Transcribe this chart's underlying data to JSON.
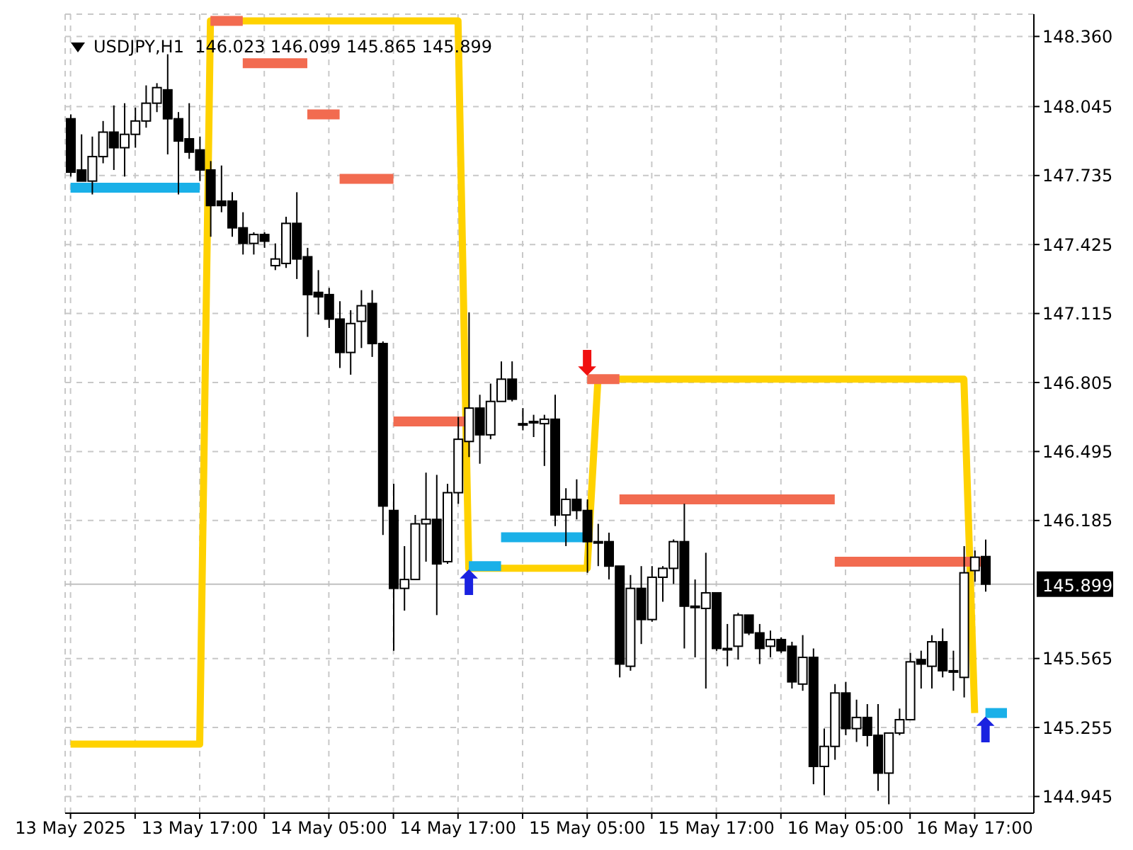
{
  "chart_data": {
    "type": "candlestick",
    "title": "USDJPY,H1  146.023 146.099 145.865 145.899",
    "x": [
      "2025-05-13T05:00",
      "2025-05-13T06:00",
      "2025-05-13T07:00",
      "2025-05-13T08:00",
      "2025-05-13T09:00",
      "2025-05-13T10:00",
      "2025-05-13T11:00",
      "2025-05-13T12:00",
      "2025-05-13T13:00",
      "2025-05-13T14:00",
      "2025-05-13T15:00",
      "2025-05-13T16:00",
      "2025-05-13T17:00",
      "2025-05-13T18:00",
      "2025-05-13T19:00",
      "2025-05-13T20:00",
      "2025-05-13T21:00",
      "2025-05-13T22:00",
      "2025-05-13T23:00",
      "2025-05-14T00:00",
      "2025-05-14T01:00",
      "2025-05-14T02:00",
      "2025-05-14T03:00",
      "2025-05-14T04:00",
      "2025-05-14T05:00",
      "2025-05-14T06:00",
      "2025-05-14T07:00",
      "2025-05-14T08:00",
      "2025-05-14T09:00",
      "2025-05-14T10:00",
      "2025-05-14T11:00",
      "2025-05-14T12:00",
      "2025-05-14T13:00",
      "2025-05-14T14:00",
      "2025-05-14T15:00",
      "2025-05-14T16:00",
      "2025-05-14T17:00",
      "2025-05-14T18:00",
      "2025-05-14T19:00",
      "2025-05-14T20:00",
      "2025-05-14T21:00",
      "2025-05-14T22:00",
      "2025-05-14T23:00",
      "2025-05-15T00:00",
      "2025-05-15T01:00",
      "2025-05-15T02:00",
      "2025-05-15T03:00",
      "2025-05-15T04:00",
      "2025-05-15T05:00",
      "2025-05-15T06:00",
      "2025-05-15T07:00",
      "2025-05-15T08:00",
      "2025-05-15T09:00",
      "2025-05-15T10:00",
      "2025-05-15T11:00",
      "2025-05-15T12:00",
      "2025-05-15T13:00",
      "2025-05-15T14:00",
      "2025-05-15T15:00",
      "2025-05-15T16:00",
      "2025-05-15T17:00",
      "2025-05-15T18:00",
      "2025-05-15T19:00",
      "2025-05-15T20:00",
      "2025-05-15T21:00",
      "2025-05-15T22:00",
      "2025-05-15T23:00",
      "2025-05-16T00:00",
      "2025-05-16T01:00",
      "2025-05-16T02:00",
      "2025-05-16T03:00",
      "2025-05-16T04:00",
      "2025-05-16T05:00",
      "2025-05-16T06:00",
      "2025-05-16T07:00",
      "2025-05-16T08:00",
      "2025-05-16T09:00",
      "2025-05-16T10:00",
      "2025-05-16T11:00",
      "2025-05-16T12:00",
      "2025-05-16T13:00",
      "2025-05-16T14:00",
      "2025-05-16T15:00",
      "2025-05-16T16:00",
      "2025-05-16T17:00",
      "2025-05-16T18:00"
    ],
    "ohlc": [
      [
        147.99,
        148.01,
        147.73,
        147.75
      ],
      [
        147.76,
        147.92,
        147.71,
        147.71
      ],
      [
        147.71,
        147.91,
        147.65,
        147.82
      ],
      [
        147.82,
        147.98,
        147.79,
        147.93
      ],
      [
        147.93,
        148.05,
        147.76,
        147.86
      ],
      [
        147.86,
        148.06,
        147.73,
        147.92
      ],
      [
        147.92,
        148.04,
        147.86,
        147.98
      ],
      [
        147.98,
        148.14,
        147.95,
        148.06
      ],
      [
        148.06,
        148.15,
        148.02,
        148.13
      ],
      [
        148.12,
        148.28,
        147.83,
        147.99
      ],
      [
        147.99,
        148.02,
        147.65,
        147.89
      ],
      [
        147.9,
        148.06,
        147.81,
        147.84
      ],
      [
        147.85,
        147.91,
        147.71,
        147.76
      ],
      [
        147.76,
        147.8,
        147.46,
        147.6
      ],
      [
        147.62,
        147.78,
        147.57,
        147.6
      ],
      [
        147.62,
        147.66,
        147.46,
        147.5
      ],
      [
        147.5,
        147.57,
        147.38,
        147.43
      ],
      [
        147.43,
        147.48,
        147.38,
        147.47
      ],
      [
        147.47,
        147.48,
        147.41,
        147.44
      ],
      [
        147.33,
        147.43,
        147.31,
        147.36
      ],
      [
        147.34,
        147.55,
        147.32,
        147.52
      ],
      [
        147.52,
        147.66,
        147.27,
        147.36
      ],
      [
        147.37,
        147.41,
        147.01,
        147.2
      ],
      [
        147.21,
        147.31,
        147.11,
        147.19
      ],
      [
        147.2,
        147.23,
        147.05,
        147.09
      ],
      [
        147.09,
        147.17,
        146.87,
        146.94
      ],
      [
        146.94,
        147.13,
        146.84,
        147.07
      ],
      [
        147.08,
        147.22,
        146.96,
        147.15
      ],
      [
        147.16,
        147.22,
        146.92,
        146.98
      ],
      [
        146.98,
        146.99,
        146.12,
        146.25
      ],
      [
        146.23,
        146.35,
        145.6,
        145.88
      ],
      [
        145.88,
        146.07,
        145.78,
        145.92
      ],
      [
        145.92,
        146.21,
        145.92,
        146.17
      ],
      [
        146.17,
        146.4,
        146.0,
        146.19
      ],
      [
        146.19,
        146.39,
        145.76,
        145.99
      ],
      [
        146.0,
        146.35,
        145.99,
        146.31
      ],
      [
        146.31,
        146.65,
        146.26,
        146.55
      ],
      [
        146.54,
        147.12,
        146.47,
        146.69
      ],
      [
        146.69,
        146.75,
        146.44,
        146.57
      ],
      [
        146.57,
        146.8,
        146.55,
        146.72
      ],
      [
        146.72,
        146.9,
        146.72,
        146.82
      ],
      [
        146.82,
        146.9,
        146.72,
        146.73
      ],
      [
        146.62,
        146.69,
        146.59,
        146.62
      ],
      [
        146.63,
        146.66,
        146.56,
        146.63
      ],
      [
        146.62,
        146.66,
        146.43,
        146.64
      ],
      [
        146.64,
        146.75,
        146.16,
        146.21
      ],
      [
        146.21,
        146.33,
        146.07,
        146.28
      ],
      [
        146.28,
        146.37,
        146.19,
        146.23
      ],
      [
        146.23,
        146.28,
        145.95,
        146.09
      ],
      [
        146.09,
        146.17,
        145.98,
        146.09
      ],
      [
        146.09,
        146.13,
        145.92,
        145.98
      ],
      [
        145.98,
        145.98,
        145.48,
        145.54
      ],
      [
        145.53,
        145.94,
        145.51,
        145.88
      ],
      [
        145.88,
        145.98,
        145.63,
        145.74
      ],
      [
        145.74,
        145.98,
        145.73,
        145.93
      ],
      [
        145.93,
        145.98,
        145.82,
        145.97
      ],
      [
        145.97,
        146.1,
        145.9,
        146.09
      ],
      [
        146.09,
        146.26,
        145.61,
        145.8
      ],
      [
        145.8,
        145.92,
        145.57,
        145.8
      ],
      [
        145.79,
        146.04,
        145.43,
        145.86
      ],
      [
        145.86,
        145.86,
        145.6,
        145.61
      ],
      [
        145.61,
        145.72,
        145.53,
        145.61
      ],
      [
        145.62,
        145.77,
        145.56,
        145.76
      ],
      [
        145.76,
        145.76,
        145.67,
        145.68
      ],
      [
        145.68,
        145.72,
        145.54,
        145.61
      ],
      [
        145.62,
        145.69,
        145.57,
        145.65
      ],
      [
        145.65,
        145.66,
        145.59,
        145.6
      ],
      [
        145.62,
        145.64,
        145.43,
        145.46
      ],
      [
        145.45,
        145.67,
        145.42,
        145.57
      ],
      [
        145.57,
        145.61,
        145.0,
        145.08
      ],
      [
        145.08,
        145.25,
        144.95,
        145.17
      ],
      [
        145.17,
        145.45,
        145.11,
        145.41
      ],
      [
        145.41,
        145.46,
        145.22,
        145.25
      ],
      [
        145.25,
        145.38,
        145.19,
        145.3
      ],
      [
        145.3,
        145.36,
        145.17,
        145.22
      ],
      [
        145.22,
        145.36,
        144.97,
        145.05
      ],
      [
        145.05,
        145.23,
        144.91,
        145.23
      ],
      [
        145.23,
        145.34,
        145.22,
        145.29
      ],
      [
        145.29,
        145.59,
        145.29,
        145.55
      ],
      [
        145.56,
        145.6,
        145.43,
        145.54
      ],
      [
        145.53,
        145.67,
        145.43,
        145.64
      ],
      [
        145.64,
        145.7,
        145.48,
        145.51
      ],
      [
        145.51,
        145.6,
        145.42,
        145.51
      ],
      [
        145.48,
        146.07,
        145.39,
        145.95
      ],
      [
        145.96,
        146.05,
        145.91,
        146.02
      ],
      [
        146.023,
        146.099,
        145.865,
        145.899
      ]
    ],
    "series": [
      {
        "type": "line",
        "color": "#ffd200",
        "x": [
          "2025-05-13T05:00",
          "2025-05-13T17:00",
          "2025-05-13T18:00",
          "2025-05-14T17:00",
          "2025-05-14T18:00",
          "2025-05-15T05:00",
          "2025-05-15T06:00",
          "2025-05-16T16:00",
          "2025-05-16T17:00"
        ],
        "values": [
          145.18,
          145.18,
          148.43,
          148.43,
          145.97,
          145.97,
          146.82,
          146.82,
          145.32
        ]
      },
      {
        "type": "line",
        "color": "#f26b50",
        "x": [
          "2025-05-13T18:00",
          "2025-05-13T21:00"
        ],
        "values": [
          148.43,
          148.43
        ]
      },
      {
        "type": "line",
        "color": "#f26b50",
        "x": [
          "2025-05-13T21:00",
          "2025-05-14T03:00"
        ],
        "values": [
          148.24,
          148.24
        ]
      },
      {
        "type": "line",
        "color": "#f26b50",
        "x": [
          "2025-05-14T03:00",
          "2025-05-14T06:00"
        ],
        "values": [
          148.01,
          148.01
        ]
      },
      {
        "type": "line",
        "color": "#f26b50",
        "x": [
          "2025-05-14T06:00",
          "2025-05-14T11:00"
        ],
        "values": [
          147.72,
          147.72
        ]
      },
      {
        "type": "line",
        "color": "#f26b50",
        "x": [
          "2025-05-14T11:00",
          "2025-05-14T18:00"
        ],
        "values": [
          146.63,
          146.63
        ]
      },
      {
        "type": "line",
        "color": "#f26b50",
        "x": [
          "2025-05-15T05:00",
          "2025-05-15T08:00"
        ],
        "values": [
          146.82,
          146.82
        ]
      },
      {
        "type": "line",
        "color": "#f26b50",
        "x": [
          "2025-05-15T08:00",
          "2025-05-16T04:00"
        ],
        "values": [
          146.28,
          146.28
        ]
      },
      {
        "type": "line",
        "color": "#f26b50",
        "x": [
          "2025-05-16T04:00",
          "2025-05-16T18:00"
        ],
        "values": [
          146.0,
          146.0
        ]
      },
      {
        "type": "line",
        "color": "#1ab0e8",
        "x": [
          "2025-05-13T05:00",
          "2025-05-13T17:00"
        ],
        "values": [
          147.68,
          147.68
        ]
      },
      {
        "type": "line",
        "color": "#1ab0e8",
        "x": [
          "2025-05-14T18:00",
          "2025-05-14T21:00"
        ],
        "values": [
          145.98,
          145.98
        ]
      },
      {
        "type": "line",
        "color": "#1ab0e8",
        "x": [
          "2025-05-14T21:00",
          "2025-05-15T05:00"
        ],
        "values": [
          146.11,
          146.11
        ]
      },
      {
        "type": "line",
        "color": "#1ab0e8",
        "x": [
          "2025-05-16T18:00",
          "2025-05-16T20:00"
        ],
        "values": [
          145.32,
          145.32
        ]
      }
    ],
    "annotations": [
      {
        "text": "⬆",
        "x": "2025-05-14T18:00",
        "y": 145.98
      },
      {
        "text": "⬇",
        "x": "2025-05-15T05:00",
        "y": 146.82
      },
      {
        "text": "⬆",
        "x": "2025-05-16T18:00",
        "y": 145.32
      }
    ],
    "ref_lines": [
      {
        "axis": "y",
        "value": 145.899,
        "label": "145.899",
        "color": "#c0c0c0"
      }
    ],
    "xlim": [
      "2025-05-13T04:30",
      "2025-05-16T22:30"
    ],
    "xticks": [
      {
        "value": "2025-05-13T05:00",
        "label": "13 May 2025"
      },
      {
        "value": "2025-05-13T11:00",
        "label": null
      },
      {
        "value": "2025-05-13T17:00",
        "label": "13 May 17:00"
      },
      {
        "value": "2025-05-13T23:00",
        "label": null
      },
      {
        "value": "2025-05-14T05:00",
        "label": "14 May 05:00"
      },
      {
        "value": "2025-05-14T11:00",
        "label": null
      },
      {
        "value": "2025-05-14T17:00",
        "label": "14 May 17:00"
      },
      {
        "value": "2025-05-14T23:00",
        "label": null
      },
      {
        "value": "2025-05-15T05:00",
        "label": "15 May 05:00"
      },
      {
        "value": "2025-05-15T11:00",
        "label": null
      },
      {
        "value": "2025-05-15T17:00",
        "label": "15 May 17:00"
      },
      {
        "value": "2025-05-15T23:00",
        "label": null
      },
      {
        "value": "2025-05-16T05:00",
        "label": "16 May 05:00"
      },
      {
        "value": "2025-05-16T11:00",
        "label": null
      },
      {
        "value": "2025-05-16T17:00",
        "label": "16 May 17:00"
      }
    ],
    "ylim": [
      144.87,
      148.46
    ],
    "yticks": [
      {
        "value": 148.36,
        "label": "148.360"
      },
      148.045,
      147.735,
      147.425,
      147.115,
      146.805,
      146.495,
      146.185,
      145.565,
      145.255,
      144.945
    ],
    "grid": true
  }
}
